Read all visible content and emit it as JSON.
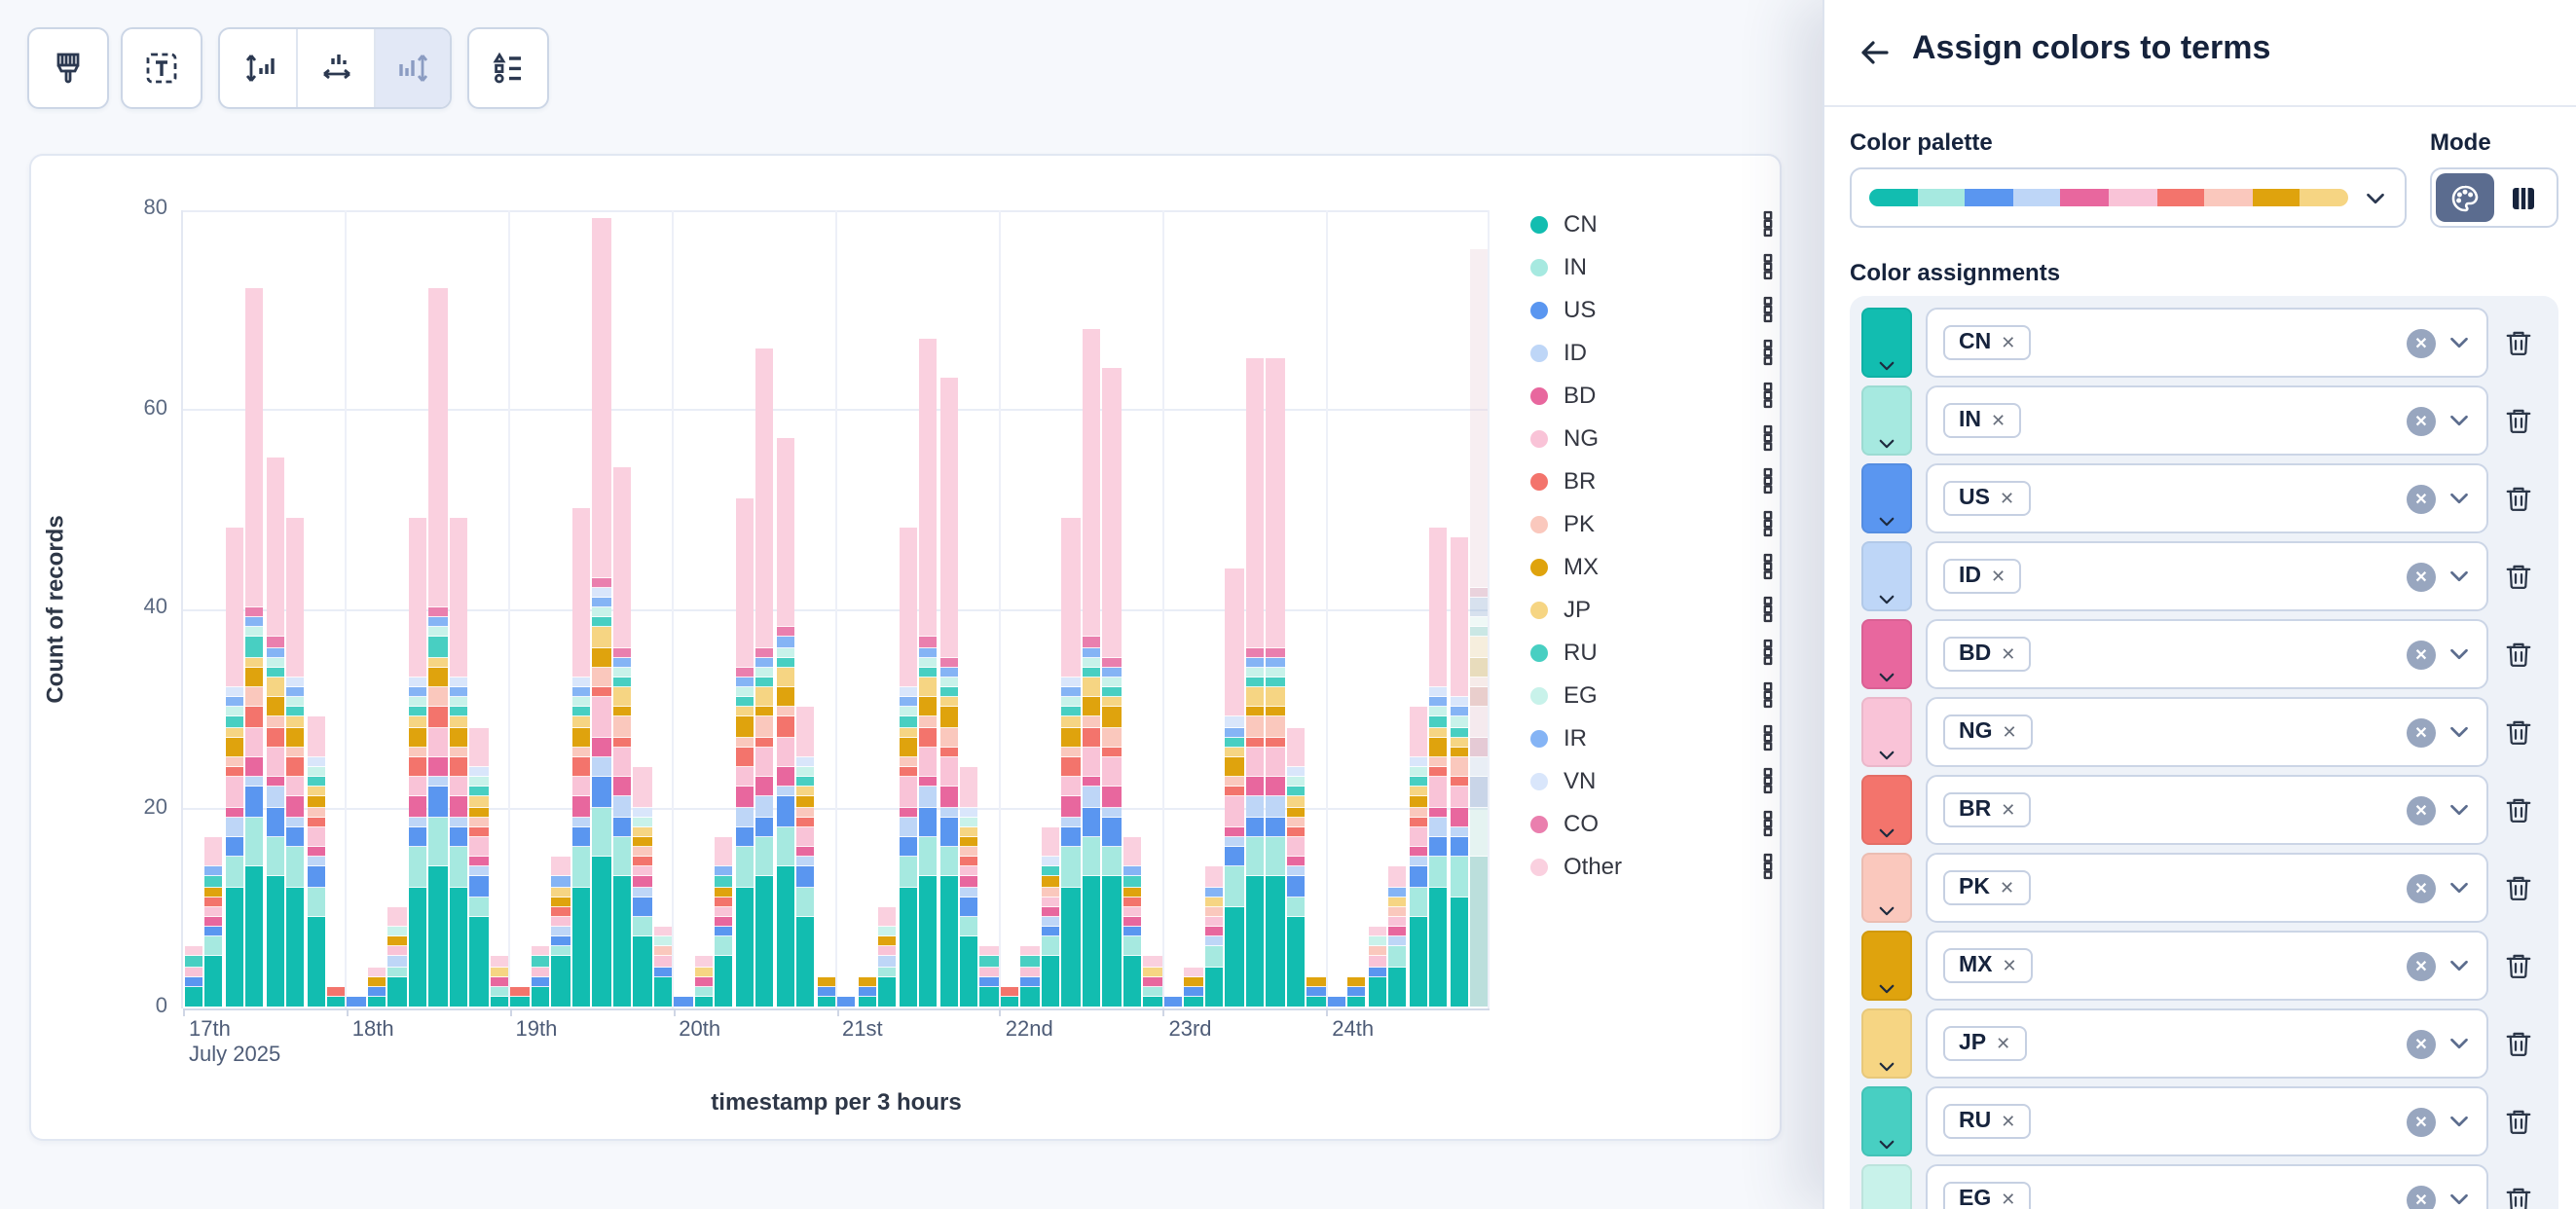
{
  "toolbar": {
    "icons": [
      "brush-icon",
      "text-annotation-icon",
      "axis-left-icon",
      "axis-bottom-icon",
      "bar-orientation-icon",
      "legend-settings-icon"
    ],
    "selected_icon": "bar-orientation-icon"
  },
  "chart": {
    "y_axis": {
      "title": "Count of records",
      "ticks": [
        "0",
        "20",
        "40",
        "60",
        "80"
      ]
    },
    "x_axis": {
      "title": "timestamp per 3 hours",
      "ticks": [
        "17th",
        "18th",
        "19th",
        "20th",
        "21st",
        "22nd",
        "23rd",
        "24th"
      ],
      "first_tick_subtitle": "July 2025"
    },
    "legend": [
      {
        "label": "CN",
        "color": "#12bdb0"
      },
      {
        "label": "IN",
        "color": "#a6e9e0"
      },
      {
        "label": "US",
        "color": "#5a96f0"
      },
      {
        "label": "ID",
        "color": "#bed6f7"
      },
      {
        "label": "BD",
        "color": "#e8679e"
      },
      {
        "label": "NG",
        "color": "#f9c3d7"
      },
      {
        "label": "BR",
        "color": "#f3746c"
      },
      {
        "label": "PK",
        "color": "#fac8bd"
      },
      {
        "label": "MX",
        "color": "#dfa30d"
      },
      {
        "label": "JP",
        "color": "#f6d583"
      },
      {
        "label": "RU",
        "color": "#48cfc2"
      },
      {
        "label": "EG",
        "color": "#c8f2ea"
      },
      {
        "label": "IR",
        "color": "#85b4f5"
      },
      {
        "label": "VN",
        "color": "#d9e6fb"
      },
      {
        "label": "CO",
        "color": "#ea7fae"
      },
      {
        "label": "Other",
        "color": "#fad0df"
      }
    ]
  },
  "chart_data": {
    "type": "bar",
    "stacked": true,
    "title": "",
    "xlabel": "timestamp per 3 hours",
    "ylabel": "Count of records",
    "ylim": [
      0,
      80
    ],
    "grid": true,
    "legend_position": "right",
    "interval_hours": 3,
    "bars_per_day": 8,
    "day_labels": [
      "17th",
      "18th",
      "19th",
      "20th",
      "21st",
      "22nd",
      "23rd",
      "24th"
    ],
    "first_day_subtitle": "July 2025",
    "series_order": [
      "CN",
      "IN",
      "US",
      "ID",
      "BD",
      "NG",
      "BR",
      "PK",
      "MX",
      "JP",
      "RU",
      "EG",
      "IR",
      "VN",
      "CO",
      "Other"
    ],
    "named_series_weights": {
      "CN": 0.36,
      "IN": 0.11,
      "US": 0.07,
      "ID": 0.045,
      "BD": 0.05,
      "NG": 0.075,
      "BR": 0.045,
      "PK": 0.04,
      "MX": 0.05,
      "JP": 0.04,
      "RU": 0.03,
      "EG": 0.025,
      "IR": 0.025,
      "VN": 0.02,
      "CO": 0.015
    },
    "day_bar_totals": [
      [
        6,
        17,
        48,
        72,
        55,
        49,
        29,
        2
      ],
      [
        1,
        4,
        10,
        49,
        72,
        49,
        28,
        5
      ],
      [
        2,
        6,
        15,
        50,
        79,
        54,
        24,
        8
      ],
      [
        1,
        5,
        17,
        51,
        66,
        57,
        30,
        3
      ],
      [
        1,
        3,
        10,
        48,
        67,
        63,
        24,
        6
      ],
      [
        2,
        6,
        18,
        49,
        68,
        64,
        17,
        5
      ],
      [
        1,
        4,
        14,
        44,
        65,
        65,
        28,
        3
      ],
      [
        1,
        3,
        8,
        14,
        30,
        48,
        47,
        76
      ]
    ],
    "day_other_values": [
      [
        1,
        3,
        16,
        32,
        18,
        16,
        4,
        0
      ],
      [
        0,
        1,
        2,
        16,
        32,
        16,
        4,
        1
      ],
      [
        0,
        1,
        2,
        17,
        36,
        18,
        4,
        1
      ],
      [
        0,
        1,
        3,
        17,
        30,
        19,
        5,
        0
      ],
      [
        0,
        0,
        2,
        16,
        30,
        28,
        4,
        1
      ],
      [
        0,
        1,
        3,
        16,
        31,
        29,
        3,
        1
      ],
      [
        0,
        1,
        2,
        15,
        29,
        29,
        4,
        0
      ],
      [
        0,
        0,
        1,
        2,
        5,
        16,
        16,
        34
      ]
    ],
    "last_bucket_partial": true
  },
  "flyout": {
    "title": "Assign colors to terms",
    "color_palette_label": "Color palette",
    "mode_label": "Mode",
    "color_assignments_label": "Color assignments",
    "palette_colors": [
      "#12bdb0",
      "#a6e9e0",
      "#5a96f0",
      "#bed6f7",
      "#e8679e",
      "#f9c3d7",
      "#f3746c",
      "#fac8bd",
      "#dfa30d",
      "#f6d583"
    ],
    "assignments": [
      {
        "term": "CN",
        "color": "#12bdb0"
      },
      {
        "term": "IN",
        "color": "#a6e9e0"
      },
      {
        "term": "US",
        "color": "#5a96f0"
      },
      {
        "term": "ID",
        "color": "#bed6f7"
      },
      {
        "term": "BD",
        "color": "#e8679e"
      },
      {
        "term": "NG",
        "color": "#f9c3d7"
      },
      {
        "term": "BR",
        "color": "#f3746c"
      },
      {
        "term": "PK",
        "color": "#fac8bd"
      },
      {
        "term": "MX",
        "color": "#dfa30d"
      },
      {
        "term": "JP",
        "color": "#f6d583"
      },
      {
        "term": "RU",
        "color": "#48cfc2"
      },
      {
        "term": "EG",
        "color": "#c8f2ea"
      }
    ]
  }
}
